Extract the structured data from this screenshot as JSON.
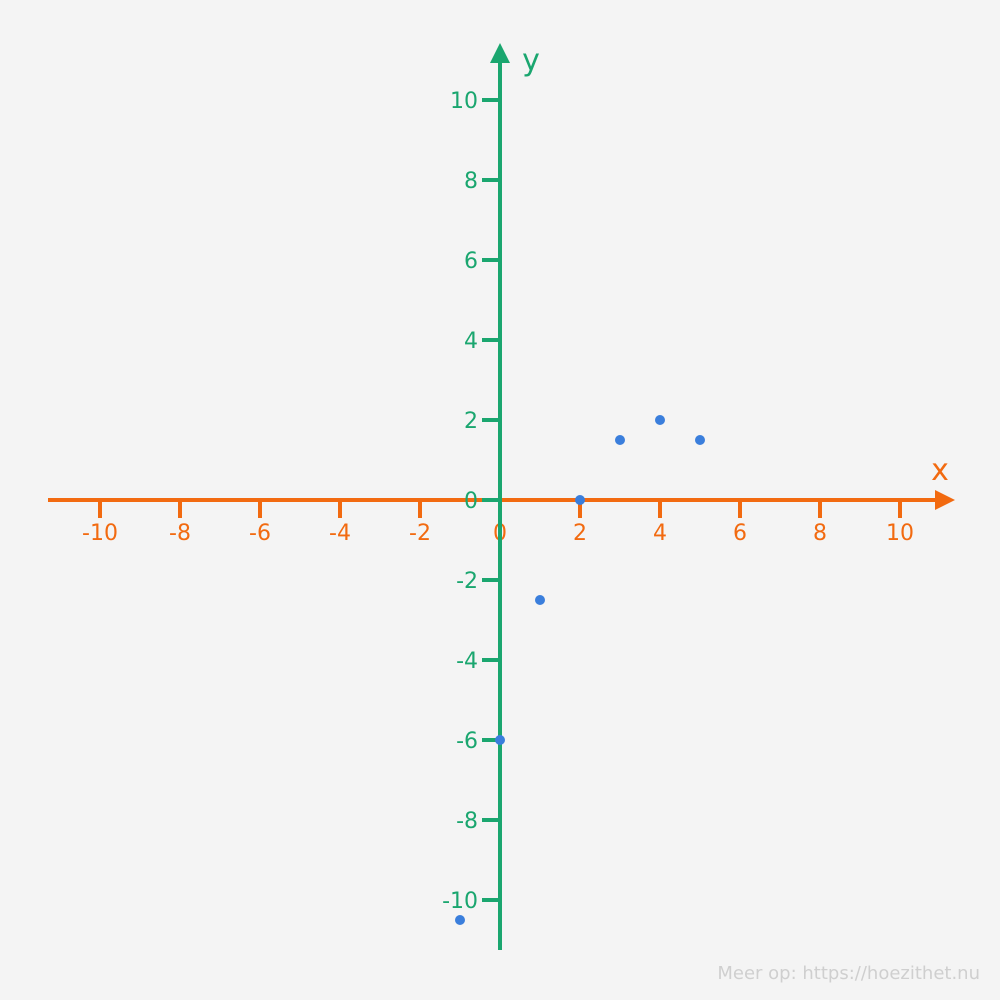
{
  "chart_data": {
    "type": "scatter",
    "title": "",
    "xlabel": "x",
    "ylabel": "y",
    "xlim": [
      -11,
      11
    ],
    "ylim": [
      -11,
      11
    ],
    "x_ticks": [
      -10,
      -8,
      -6,
      -4,
      -2,
      0,
      2,
      4,
      6,
      8,
      10
    ],
    "x_tick_labels": [
      "-10",
      "-8",
      "-6",
      "-4",
      "-2",
      "0",
      "2",
      "4",
      "6",
      "8",
      "10"
    ],
    "y_ticks": [
      10,
      8,
      6,
      4,
      2,
      0,
      -2,
      -4,
      -6,
      -8,
      -10
    ],
    "y_tick_labels": [
      "10",
      "8",
      "6",
      "4",
      "2",
      "0",
      "-2",
      "-4",
      "-6",
      "-8",
      "-10"
    ],
    "grid": false,
    "series": [
      {
        "points": [
          {
            "x": -1,
            "y": -10.5
          },
          {
            "x": 0,
            "y": -6
          },
          {
            "x": 1,
            "y": -2.5
          },
          {
            "x": 2,
            "y": 0
          },
          {
            "x": 3,
            "y": 1.5
          },
          {
            "x": 4,
            "y": 2
          },
          {
            "x": 5,
            "y": 1.5
          }
        ]
      }
    ]
  },
  "colors": {
    "x_axis": "#f26a10",
    "y_axis": "#1aa66f",
    "points": "#3a7edc",
    "background": "#f4f4f4"
  },
  "watermark": "Meer op: https://hoezithet.nu"
}
